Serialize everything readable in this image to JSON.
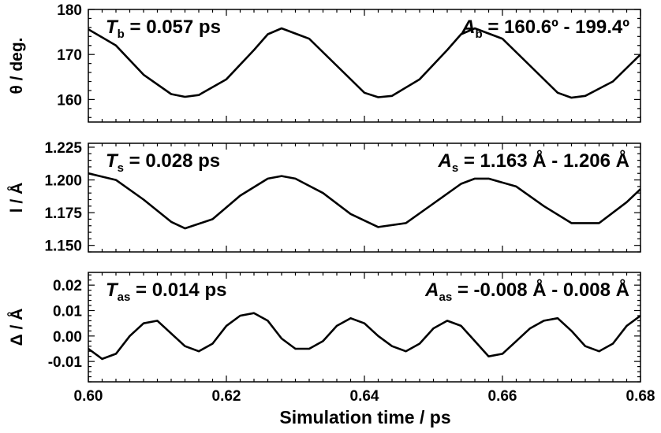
{
  "chart_data": [
    {
      "type": "line",
      "ylabel": "θ / deg.",
      "xlim": [
        0.6,
        0.68
      ],
      "ylim": [
        155,
        180
      ],
      "yticks": [
        160,
        170,
        180
      ],
      "ytick_labels": [
        "160",
        "170",
        "180"
      ],
      "annotation_left": {
        "symbol": "T",
        "subscript": "b",
        "text": " = 0.057 ps"
      },
      "annotation_right": {
        "symbol": "A",
        "subscript": "b",
        "text": " = 160.6º - 199.4º"
      },
      "series": [
        {
          "color": "#000000",
          "x": [
            0.6,
            0.604,
            0.608,
            0.612,
            0.614,
            0.616,
            0.62,
            0.624,
            0.626,
            0.628,
            0.632,
            0.636,
            0.64,
            0.642,
            0.644,
            0.648,
            0.652,
            0.654,
            0.656,
            0.66,
            0.664,
            0.668,
            0.67,
            0.672,
            0.676,
            0.68
          ],
          "y": [
            175.6,
            172.0,
            165.5,
            161.2,
            160.6,
            161.0,
            164.5,
            171.0,
            174.5,
            175.8,
            173.5,
            167.5,
            161.5,
            160.5,
            160.8,
            164.5,
            171.0,
            174.5,
            175.8,
            173.5,
            167.5,
            161.5,
            160.4,
            160.8,
            164.0,
            170.0
          ]
        }
      ]
    },
    {
      "type": "line",
      "ylabel": "l / Å",
      "xlim": [
        0.6,
        0.68
      ],
      "ylim": [
        1.145,
        1.228
      ],
      "yticks": [
        1.15,
        1.175,
        1.2,
        1.225
      ],
      "ytick_labels": [
        "1.150",
        "1.175",
        "1.200",
        "1.225"
      ],
      "annotation_left": {
        "symbol": "T",
        "subscript": "s",
        "text": " = 0.028 ps"
      },
      "annotation_right": {
        "symbol": "A",
        "subscript": "s",
        "text": " = 1.163 Å - 1.206 Å"
      },
      "series": [
        {
          "color": "#000000",
          "x": [
            0.6,
            0.604,
            0.608,
            0.612,
            0.614,
            0.618,
            0.622,
            0.626,
            0.628,
            0.63,
            0.634,
            0.638,
            0.642,
            0.646,
            0.65,
            0.654,
            0.656,
            0.658,
            0.662,
            0.666,
            0.67,
            0.674,
            0.678,
            0.68
          ],
          "y": [
            1.205,
            1.2,
            1.185,
            1.168,
            1.163,
            1.17,
            1.188,
            1.201,
            1.203,
            1.201,
            1.19,
            1.174,
            1.164,
            1.167,
            1.182,
            1.197,
            1.201,
            1.201,
            1.195,
            1.18,
            1.167,
            1.167,
            1.183,
            1.193
          ]
        }
      ]
    },
    {
      "type": "line",
      "ylabel": "Δ / Å",
      "xlabel": "Simulation time / ps",
      "xlim": [
        0.6,
        0.68
      ],
      "ylim": [
        -0.018,
        0.025
      ],
      "yticks": [
        -0.01,
        0.0,
        0.01,
        0.02
      ],
      "ytick_labels": [
        "-0.01",
        "0.00",
        "0.01",
        "0.02"
      ],
      "xticks": [
        0.6,
        0.62,
        0.64,
        0.66,
        0.68
      ],
      "xtick_labels": [
        "0.60",
        "0.62",
        "0.64",
        "0.66",
        "0.68"
      ],
      "annotation_left": {
        "symbol": "T",
        "subscript": "as",
        "text": " = 0.014 ps"
      },
      "annotation_right": {
        "symbol": "A",
        "subscript": "as",
        "text": " = -0.008 Å - 0.008 Å"
      },
      "series": [
        {
          "color": "#000000",
          "x": [
            0.6,
            0.602,
            0.604,
            0.606,
            0.608,
            0.61,
            0.612,
            0.614,
            0.616,
            0.618,
            0.62,
            0.622,
            0.624,
            0.626,
            0.628,
            0.63,
            0.632,
            0.634,
            0.636,
            0.638,
            0.64,
            0.642,
            0.644,
            0.646,
            0.648,
            0.65,
            0.652,
            0.654,
            0.656,
            0.658,
            0.66,
            0.662,
            0.664,
            0.666,
            0.668,
            0.67,
            0.672,
            0.674,
            0.676,
            0.678,
            0.68
          ],
          "y": [
            -0.005,
            -0.009,
            -0.007,
            0.0,
            0.005,
            0.006,
            0.001,
            -0.004,
            -0.006,
            -0.003,
            0.004,
            0.008,
            0.009,
            0.006,
            -0.001,
            -0.005,
            -0.005,
            -0.002,
            0.004,
            0.007,
            0.005,
            0.0,
            -0.004,
            -0.006,
            -0.003,
            0.003,
            0.006,
            0.004,
            -0.002,
            -0.008,
            -0.007,
            -0.002,
            0.003,
            0.006,
            0.007,
            0.002,
            -0.004,
            -0.006,
            -0.003,
            0.004,
            0.008
          ]
        }
      ]
    }
  ]
}
